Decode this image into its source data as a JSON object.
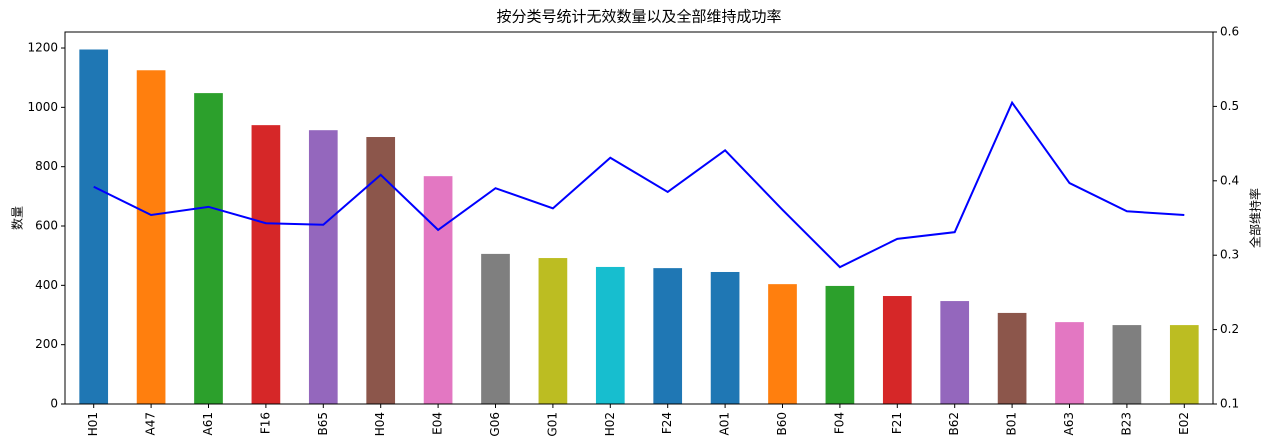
{
  "chart_data": {
    "type": "bar",
    "title": "按分类号统计无效数量以及全部维持成功率",
    "ylabel": "数量",
    "y2label": "全部维持率",
    "categories": [
      "H01",
      "A47",
      "A61",
      "F16",
      "B65",
      "H04",
      "E04",
      "G06",
      "G01",
      "H02",
      "F24",
      "A01",
      "B60",
      "F04",
      "F21",
      "B62",
      "B01",
      "A63",
      "B23",
      "E02"
    ],
    "ylim": [
      0,
      1254
    ],
    "yticks": [
      0,
      200,
      400,
      600,
      800,
      1000,
      1200
    ],
    "y2lim": [
      0.1,
      0.6
    ],
    "y2ticks": [
      0.1,
      0.2,
      0.3,
      0.4,
      0.5,
      0.6
    ],
    "series": [
      {
        "type": "bar",
        "colors": [
          "#1f77b4",
          "#ff7f0e",
          "#2ca02c",
          "#d62728",
          "#9467bd",
          "#8c564b",
          "#e377c2",
          "#7f7f7f",
          "#bcbd22",
          "#17becf",
          "#1f77b4",
          "#1f77b4",
          "#ff7f0e",
          "#2ca02c",
          "#d62728",
          "#9467bd",
          "#8c564b",
          "#e377c2",
          "#7f7f7f",
          "#bcbd22"
        ],
        "values": [
          1195,
          1125,
          1048,
          940,
          923,
          900,
          768,
          506,
          492,
          462,
          458,
          445,
          404,
          398,
          364,
          347,
          307,
          276,
          266,
          266
        ]
      },
      {
        "type": "line",
        "axis": "y2",
        "color": "#0000ff",
        "values": [
          0.392,
          0.354,
          0.365,
          0.343,
          0.341,
          0.408,
          0.334,
          0.39,
          0.363,
          0.431,
          0.385,
          0.441,
          0.361,
          0.284,
          0.322,
          0.331,
          0.505,
          0.397,
          0.359,
          0.354
        ]
      }
    ]
  }
}
